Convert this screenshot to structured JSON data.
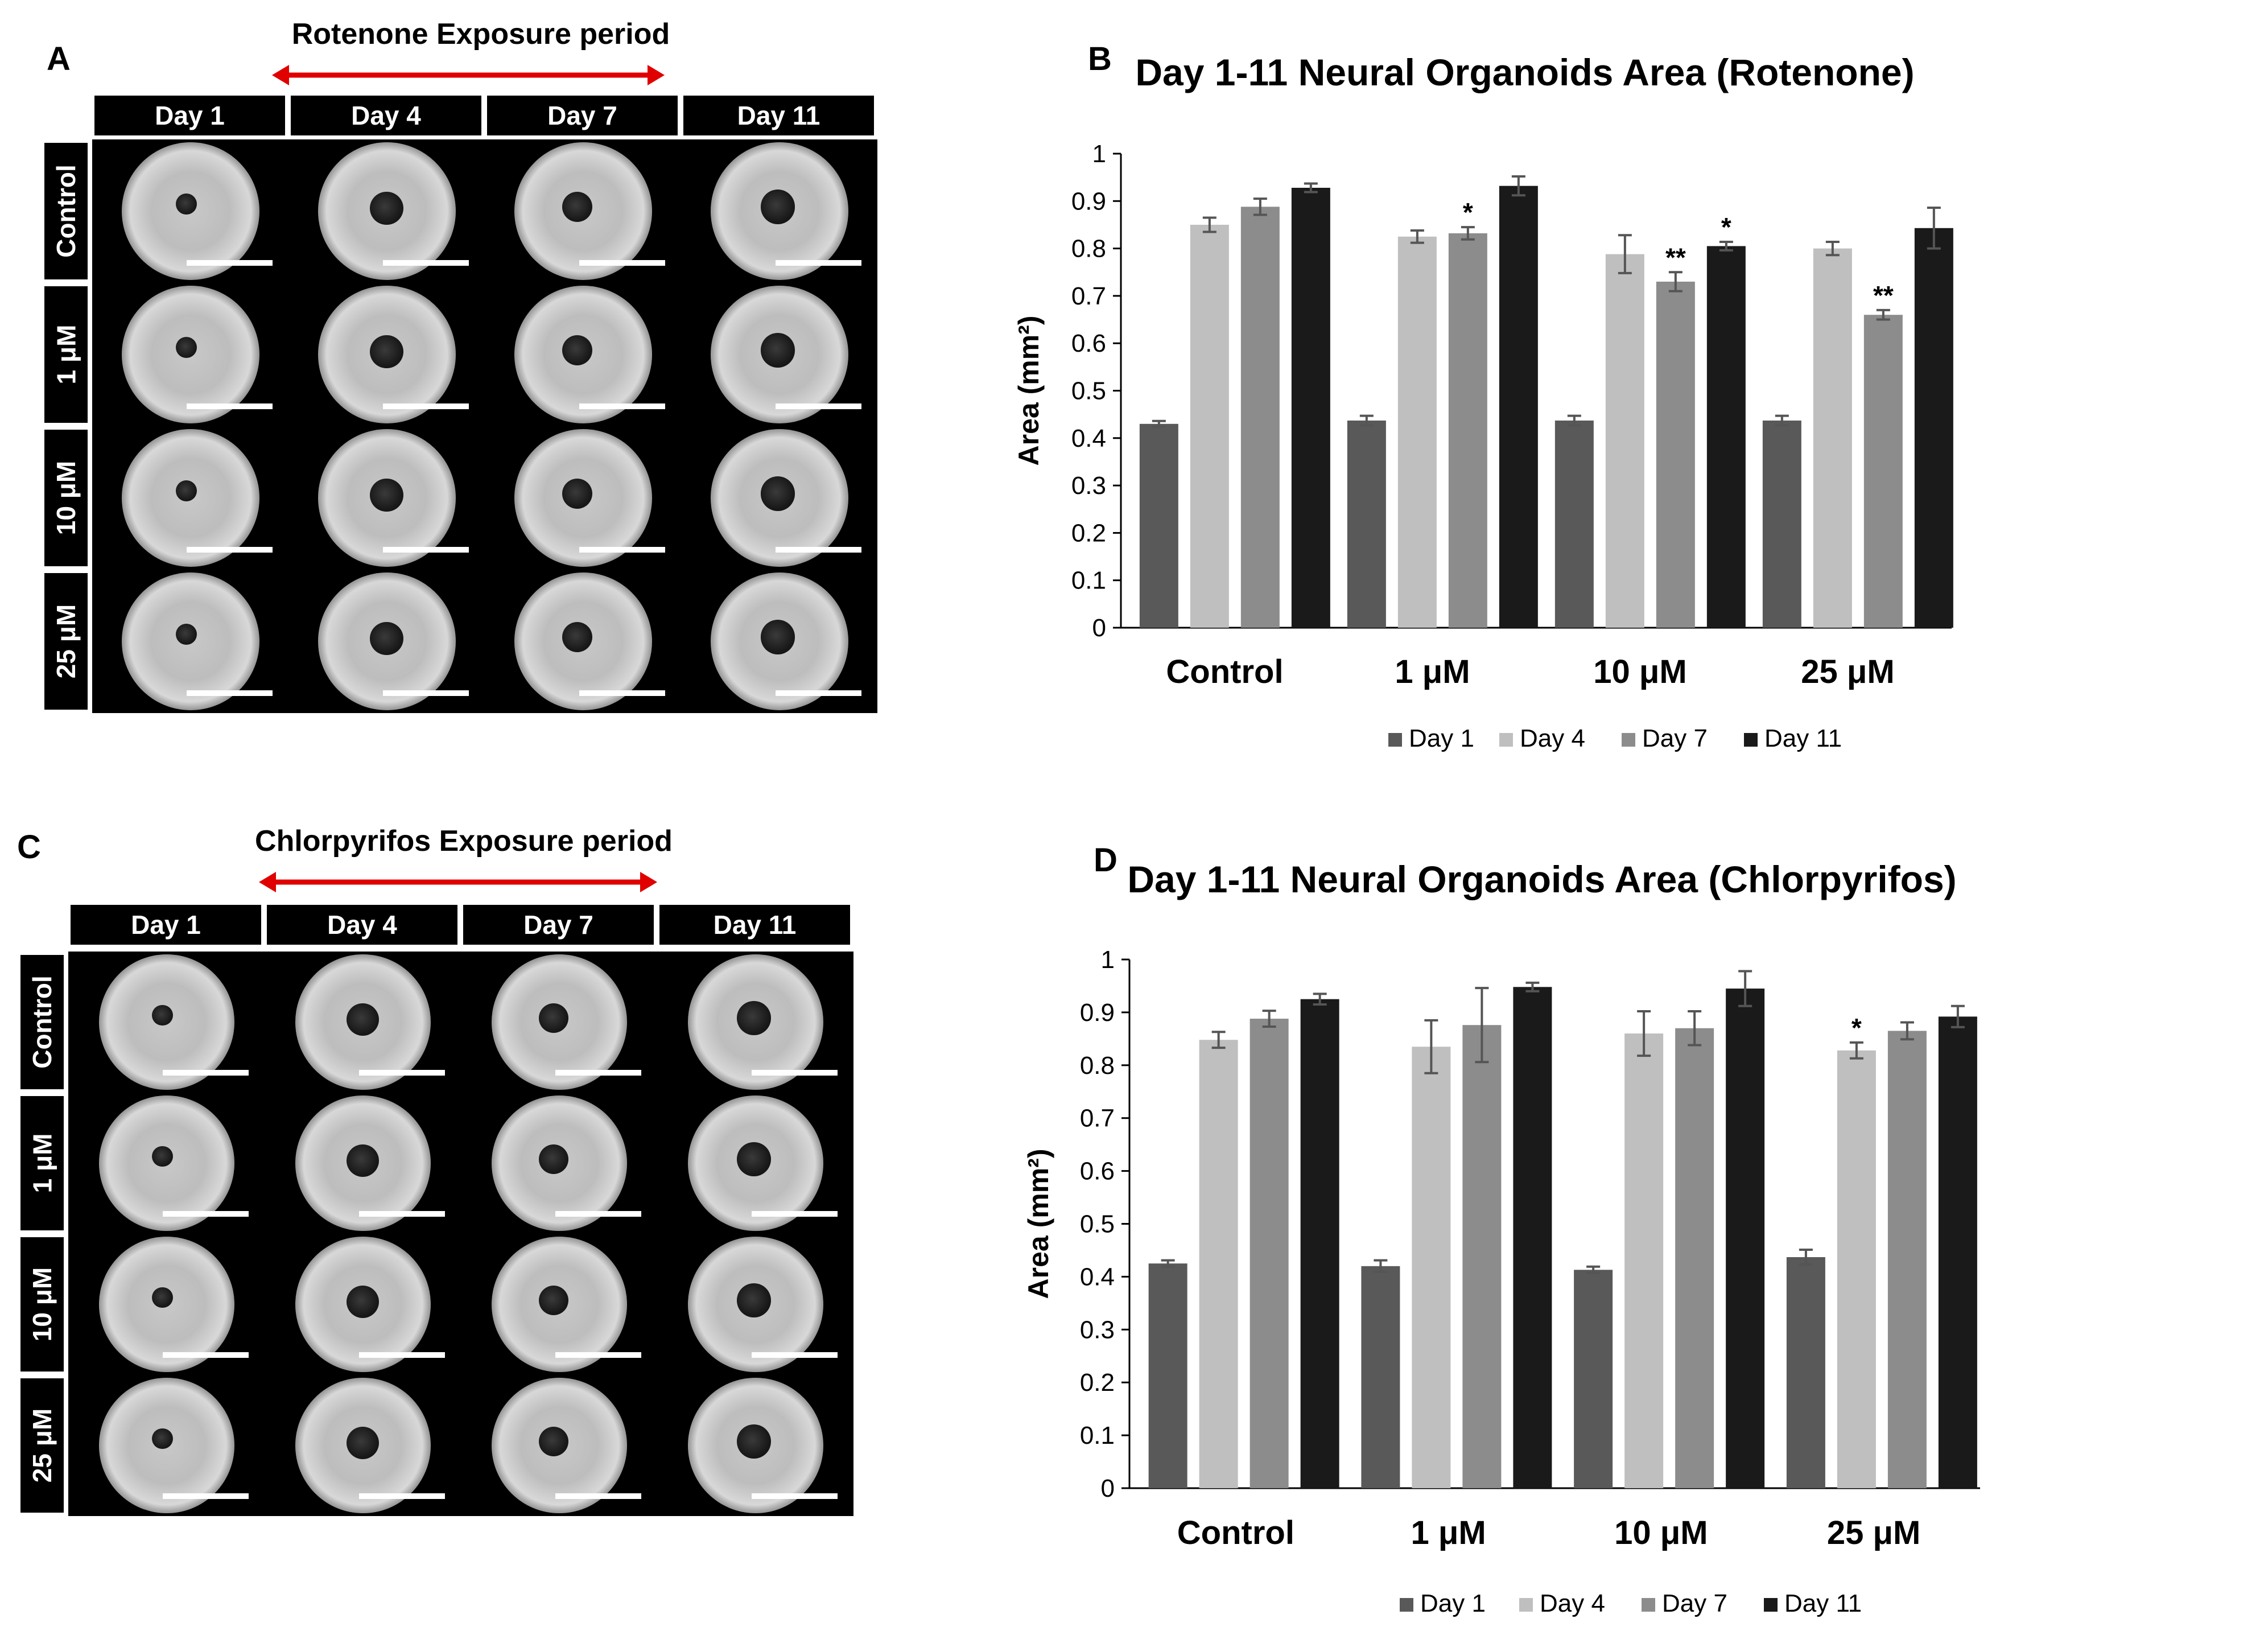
{
  "panels": {
    "A": {
      "letter": "A",
      "exposure_title": "Rotenone  Exposure period",
      "days": [
        "Day 1",
        "Day 4",
        "Day 7",
        "Day 11"
      ],
      "rows": [
        "Control",
        "1 μM",
        "10 μM",
        "25 μM"
      ]
    },
    "C": {
      "letter": "C",
      "exposure_title": "Chlorpyrifos  Exposure period",
      "days": [
        "Day 1",
        "Day 4",
        "Day 7",
        "Day 11"
      ],
      "rows": [
        "Control",
        "1 μM",
        "10 μM",
        "25 μM"
      ]
    },
    "B": {
      "letter": "B"
    },
    "D": {
      "letter": "D"
    }
  },
  "colors": {
    "day1": "#595959",
    "day4": "#bfbfbf",
    "day7": "#8c8c8c",
    "day11": "#1a1a1a",
    "arrow": "#e00000",
    "error_bar": "#555555"
  },
  "chart_data": [
    {
      "type": "bar",
      "title": "Day 1-11 Neural Organoids Area (Rotenone)",
      "xlabel": "",
      "ylabel": "Area (mm²)",
      "ylim": [
        0,
        1
      ],
      "yticks": [
        "0",
        "0.1",
        "0.2",
        "0.3",
        "0.4",
        "0.5",
        "0.6",
        "0.7",
        "0.8",
        "0.9",
        "1"
      ],
      "categories": [
        "Control",
        "1 μM",
        "10 μM",
        "25 μM"
      ],
      "legend_position": "bottom",
      "series": [
        {
          "name": "Day 1",
          "values": [
            0.43,
            0.437,
            0.437,
            0.437
          ],
          "errors": [
            0.006,
            0.01,
            0.01,
            0.01
          ],
          "stars": [
            "",
            "",
            "",
            ""
          ]
        },
        {
          "name": "Day 4",
          "values": [
            0.85,
            0.825,
            0.788,
            0.8
          ],
          "errors": [
            0.015,
            0.013,
            0.04,
            0.014
          ],
          "stars": [
            "",
            "",
            "",
            ""
          ]
        },
        {
          "name": "Day 7",
          "values": [
            0.888,
            0.832,
            0.73,
            0.66
          ],
          "errors": [
            0.017,
            0.013,
            0.02,
            0.01
          ],
          "stars": [
            "",
            "*",
            "**",
            "**"
          ]
        },
        {
          "name": "Day 11",
          "values": [
            0.928,
            0.932,
            0.805,
            0.843
          ],
          "errors": [
            0.009,
            0.02,
            0.009,
            0.043
          ],
          "stars": [
            "",
            "",
            "*",
            ""
          ]
        }
      ]
    },
    {
      "type": "bar",
      "title": "Day 1-11 Neural Organoids Area (Chlorpyrifos)",
      "xlabel": "",
      "ylabel": "Area (mm²)",
      "ylim": [
        0,
        1
      ],
      "yticks": [
        "0",
        "0.1",
        "0.2",
        "0.3",
        "0.4",
        "0.5",
        "0.6",
        "0.7",
        "0.8",
        "0.9",
        "1"
      ],
      "categories": [
        "Control",
        "1 μM",
        "10 μM",
        "25 μM"
      ],
      "legend_position": "bottom",
      "series": [
        {
          "name": "Day 1",
          "values": [
            0.425,
            0.42,
            0.413,
            0.437
          ],
          "errors": [
            0.006,
            0.011,
            0.006,
            0.014
          ],
          "stars": [
            "",
            "",
            "",
            ""
          ]
        },
        {
          "name": "Day 4",
          "values": [
            0.848,
            0.835,
            0.86,
            0.828
          ],
          "errors": [
            0.015,
            0.05,
            0.042,
            0.015
          ],
          "stars": [
            "",
            "",
            "",
            "*"
          ]
        },
        {
          "name": "Day 7",
          "values": [
            0.888,
            0.876,
            0.87,
            0.865
          ],
          "errors": [
            0.015,
            0.07,
            0.032,
            0.016
          ],
          "stars": [
            "",
            "",
            "",
            ""
          ]
        },
        {
          "name": "Day 11",
          "values": [
            0.925,
            0.948,
            0.945,
            0.892
          ],
          "errors": [
            0.01,
            0.008,
            0.033,
            0.02
          ],
          "stars": [
            "",
            "",
            "",
            ""
          ]
        }
      ]
    }
  ]
}
